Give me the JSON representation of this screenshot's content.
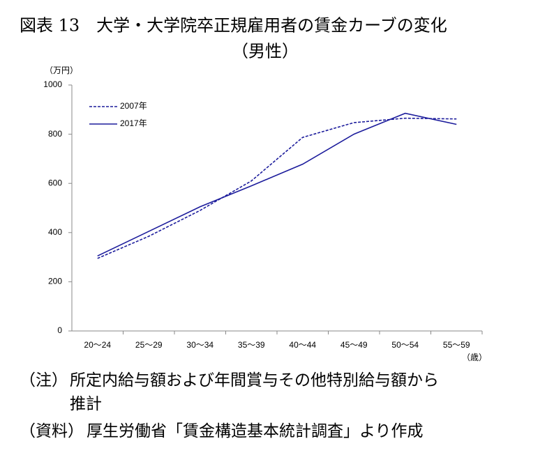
{
  "chart_data": {
    "type": "line",
    "title": "図表 13　大学・大学院卒正規雇用者の賃金カーブの変化",
    "subtitle": "（男性）",
    "y_unit": "（万円）",
    "x_unit": "（歳）",
    "categories": [
      "20〜24",
      "25〜29",
      "30〜34",
      "35〜39",
      "40〜44",
      "45〜49",
      "50〜54",
      "55〜59"
    ],
    "series": [
      {
        "name": "2007年",
        "color": "#1c1c9c",
        "dash": true,
        "values": [
          295,
          385,
          490,
          610,
          787,
          847,
          865,
          862
        ]
      },
      {
        "name": "2017年",
        "color": "#1c1c9c",
        "dash": false,
        "values": [
          305,
          405,
          505,
          590,
          678,
          800,
          885,
          840
        ]
      }
    ],
    "ylim": [
      0,
      1000
    ],
    "yticks": [
      0,
      200,
      400,
      600,
      800,
      1000
    ],
    "grid": false,
    "legend": "top-left"
  },
  "notes": [
    {
      "label": "（注）",
      "lines": [
        "所定内給与額および年間賞与その他特別給与額から",
        "推計"
      ]
    },
    {
      "label": "（資料）",
      "lines": [
        "厚生労働省「賃金構造基本統計調査」より作成"
      ]
    }
  ]
}
